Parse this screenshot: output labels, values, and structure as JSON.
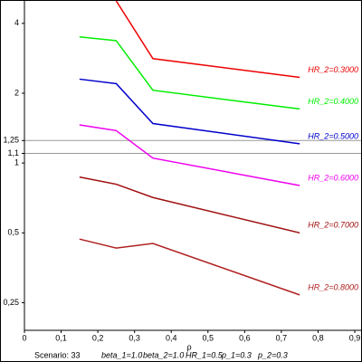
{
  "chart_data": {
    "type": "line",
    "x_label": "ρ",
    "footnote": [
      "Scenario: 33",
      "beta_1=1.0",
      "beta_2=1.0",
      "HR_1=0.5",
      "p_1=0.3",
      "p_2=0.3"
    ],
    "x": [
      0.15,
      0.25,
      0.35,
      0.75
    ],
    "series": [
      {
        "name": "HR_2=0.3000",
        "color": "#ee0000",
        "values": [
          null,
          5.0,
          2.82,
          2.34
        ]
      },
      {
        "name": "HR_2=0.4000",
        "color": "#00ee00",
        "values": [
          3.5,
          3.37,
          2.06,
          1.71
        ]
      },
      {
        "name": "HR_2=0.5000",
        "color": "#0000cc",
        "values": [
          2.3,
          2.2,
          1.48,
          1.21
        ]
      },
      {
        "name": "HR_2=0.6000",
        "color": "#ee00ee",
        "values": [
          1.46,
          1.38,
          1.05,
          0.8
        ]
      },
      {
        "name": "HR_2=0.7000",
        "color": "#a01010",
        "values": [
          0.87,
          0.81,
          0.71,
          0.5
        ]
      },
      {
        "name": "HR_2=0.8000",
        "color": "#b02020",
        "values": [
          0.47,
          0.43,
          0.45,
          0.27
        ]
      }
    ],
    "xlim": [
      0,
      0.9
    ],
    "xticks": [
      0,
      {
        "value": 0.1,
        "label": "0,1"
      },
      {
        "value": 0.2,
        "label": "0,2"
      },
      {
        "value": 0.3,
        "label": "0,3"
      },
      {
        "value": 0.4,
        "label": "0,4"
      },
      {
        "value": 0.5,
        "label": "0,5"
      },
      {
        "value": 0.6,
        "label": "0,6"
      },
      {
        "value": 0.7,
        "label": "0,7"
      },
      {
        "value": 0.8,
        "label": "0,8"
      },
      {
        "value": 0.9,
        "label": "0,9"
      }
    ],
    "ylim": [
      0.19,
      5
    ],
    "yticks": [
      {
        "value": 0.25,
        "label": "0,25"
      },
      {
        "value": 0.5,
        "label": "0,5"
      },
      1,
      {
        "value": 1.1,
        "label": "1,1"
      },
      {
        "value": 1.25,
        "label": "1,25"
      },
      2,
      4
    ],
    "y_log": true,
    "reference_lines": [
      1.1,
      1.25
    ]
  }
}
